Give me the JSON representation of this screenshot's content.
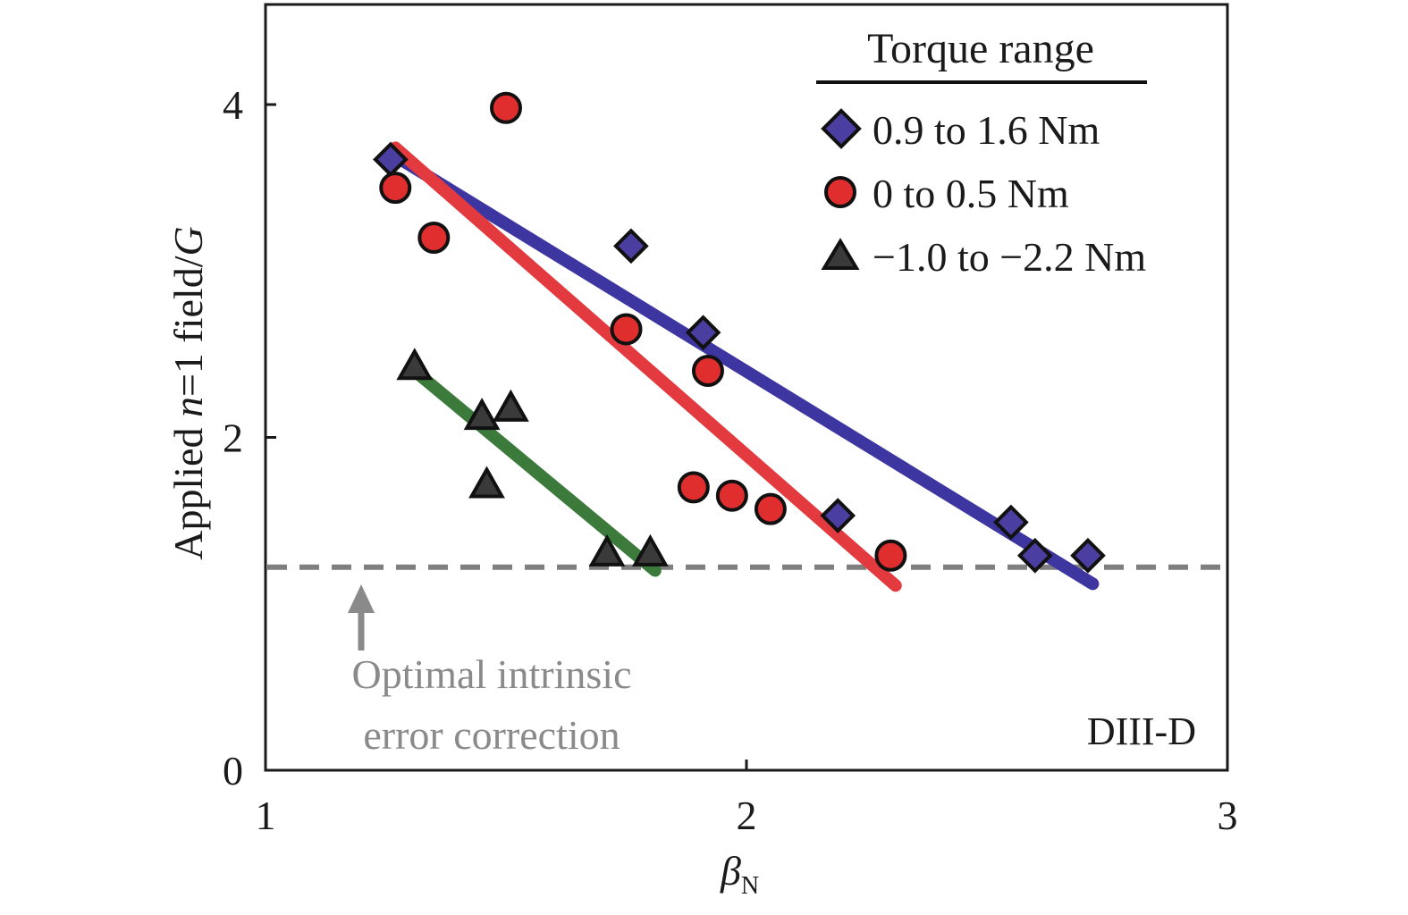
{
  "chart_data": {
    "type": "scatter",
    "xlim": [
      1,
      3
    ],
    "ylim": [
      0,
      4.6
    ],
    "x_ticks": [
      1,
      2,
      3
    ],
    "y_ticks": [
      0,
      2,
      4
    ],
    "x_tick_labels": [
      "1",
      "2",
      "3"
    ],
    "y_tick_labels": [
      "0",
      "2",
      "4"
    ],
    "xlabel": "β",
    "xlabel_sub": "N",
    "ylabel": "Applied n=1 field/G",
    "ylabel_parts": {
      "pre": "Applied ",
      "italic": "n",
      "mid": "=1 field/",
      "italic2": "G"
    },
    "grid": false,
    "legend": {
      "title": "Torque range",
      "placement": "top-right",
      "entries": [
        "0.9 to 1.6 Nm",
        "0 to 0.5 Nm",
        "−1.0 to −2.2 Nm"
      ]
    },
    "series": [
      {
        "name": "0.9 to 1.6 Nm",
        "marker": "diamond",
        "color": "#4a3fa0",
        "points": [
          {
            "x": 1.26,
            "y": 3.67
          },
          {
            "x": 1.76,
            "y": 3.15
          },
          {
            "x": 1.91,
            "y": 2.63
          },
          {
            "x": 2.19,
            "y": 1.53
          },
          {
            "x": 2.55,
            "y": 1.49
          },
          {
            "x": 2.6,
            "y": 1.29
          },
          {
            "x": 2.71,
            "y": 1.29
          }
        ],
        "fit_line": {
          "points": [
            {
              "x": 1.27,
              "y": 3.69
            },
            {
              "x": 2.72,
              "y": 1.12
            }
          ],
          "color": "#3d35a0"
        }
      },
      {
        "name": "0 to 0.5 Nm",
        "marker": "circle",
        "color": "#e02e2e",
        "points": [
          {
            "x": 1.27,
            "y": 3.5
          },
          {
            "x": 1.35,
            "y": 3.2
          },
          {
            "x": 1.5,
            "y": 3.98
          },
          {
            "x": 1.75,
            "y": 2.65
          },
          {
            "x": 1.92,
            "y": 2.4
          },
          {
            "x": 1.89,
            "y": 1.7
          },
          {
            "x": 1.97,
            "y": 1.65
          },
          {
            "x": 2.05,
            "y": 1.57
          },
          {
            "x": 2.3,
            "y": 1.29
          }
        ],
        "fit_line": {
          "points": [
            {
              "x": 1.27,
              "y": 3.74
            },
            {
              "x": 2.31,
              "y": 1.11
            }
          ],
          "color": "#e23a3f"
        }
      },
      {
        "name": "−1.0 to −2.2 Nm",
        "marker": "triangle",
        "color": "#3a3a3a",
        "points": [
          {
            "x": 1.31,
            "y": 2.42
          },
          {
            "x": 1.45,
            "y": 2.12
          },
          {
            "x": 1.51,
            "y": 2.17
          },
          {
            "x": 1.46,
            "y": 1.71
          },
          {
            "x": 1.71,
            "y": 1.3
          },
          {
            "x": 1.8,
            "y": 1.3
          }
        ],
        "fit_line": {
          "points": [
            {
              "x": 1.31,
              "y": 2.4
            },
            {
              "x": 1.81,
              "y": 1.2
            }
          ],
          "color": "#3c7a3c"
        }
      }
    ],
    "reference_line": {
      "y": 1.22,
      "style": "dashed",
      "color": "#7f7f7f"
    },
    "annotation": {
      "lines": [
        "Optimal intrinsic",
        "error correction"
      ],
      "arrow_x": 1.2
    },
    "tag": "DIII-D"
  }
}
